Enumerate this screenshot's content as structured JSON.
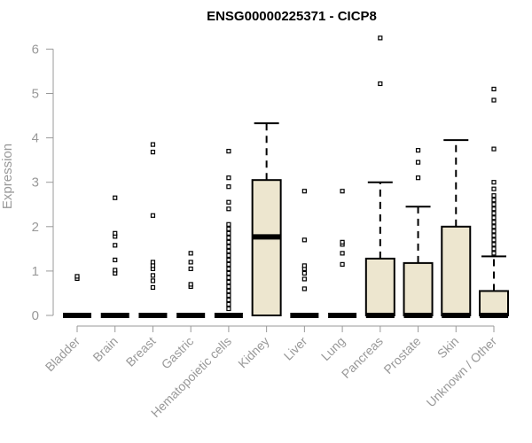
{
  "chart_data": {
    "type": "box",
    "title": "ENSG00000225371 - CICP8",
    "xlabel": "",
    "ylabel": "Expression",
    "ylim": [
      0,
      6.3
    ],
    "yticks": [
      0,
      1,
      2,
      3,
      4,
      5,
      6
    ],
    "box_color": "#ede6cf",
    "grid": false,
    "categories": [
      "Bladder",
      "Brain",
      "Breast",
      "Gastric",
      "Hematopoietic cells",
      "Kidney",
      "Liver",
      "Lung",
      "Pancreas",
      "Prostate",
      "Skin",
      "Unknown / Other"
    ],
    "boxes": [
      {
        "q1": 0,
        "median": 0,
        "q3": 0,
        "whisker_low": 0,
        "whisker_high": 0,
        "outliers": [
          0.83,
          0.88
        ]
      },
      {
        "q1": 0,
        "median": 0,
        "q3": 0,
        "whisker_low": 0,
        "whisker_high": 0,
        "outliers": [
          0.95,
          1.02,
          1.25,
          1.58,
          1.78,
          1.85,
          2.65
        ]
      },
      {
        "q1": 0,
        "median": 0,
        "q3": 0,
        "whisker_low": 0,
        "whisker_high": 0,
        "outliers": [
          0.63,
          0.78,
          0.9,
          1.05,
          1.12,
          1.2,
          2.25,
          3.68,
          3.85
        ]
      },
      {
        "q1": 0,
        "median": 0,
        "q3": 0,
        "whisker_low": 0,
        "whisker_high": 0,
        "outliers": [
          0.65,
          0.7,
          1.05,
          1.2,
          1.4
        ]
      },
      {
        "q1": 0,
        "median": 0,
        "q3": 0,
        "whisker_low": 0,
        "whisker_high": 0,
        "outliers": [
          0.15,
          0.25,
          0.35,
          0.45,
          0.55,
          0.65,
          0.75,
          0.85,
          0.95,
          1.05,
          1.15,
          1.25,
          1.35,
          1.45,
          1.55,
          1.65,
          1.75,
          1.85,
          1.95,
          2.05,
          2.4,
          2.55,
          2.9,
          3.1,
          3.7
        ]
      },
      {
        "q1": 0,
        "median": 1.77,
        "q3": 3.05,
        "whisker_low": 0,
        "whisker_high": 4.33,
        "outliers": []
      },
      {
        "q1": 0,
        "median": 0,
        "q3": 0,
        "whisker_low": 0,
        "whisker_high": 0,
        "outliers": [
          0.6,
          0.82,
          0.95,
          1.05,
          1.12,
          1.7,
          2.8
        ]
      },
      {
        "q1": 0,
        "median": 0,
        "q3": 0,
        "whisker_low": 0,
        "whisker_high": 0,
        "outliers": [
          1.15,
          1.4,
          1.6,
          1.65,
          2.8
        ]
      },
      {
        "q1": 0,
        "median": 0,
        "q3": 1.28,
        "whisker_low": 0,
        "whisker_high": 3.0,
        "outliers": [
          5.22,
          6.25
        ]
      },
      {
        "q1": 0,
        "median": 0,
        "q3": 1.18,
        "whisker_low": 0,
        "whisker_high": 2.45,
        "outliers": [
          3.1,
          3.45,
          3.72
        ]
      },
      {
        "q1": 0,
        "median": 0,
        "q3": 2.0,
        "whisker_low": 0,
        "whisker_high": 3.95,
        "outliers": []
      },
      {
        "q1": 0,
        "median": 0,
        "q3": 0.55,
        "whisker_low": 0,
        "whisker_high": 1.33,
        "outliers": [
          1.4,
          1.5,
          1.6,
          1.7,
          1.8,
          1.9,
          2.0,
          2.1,
          2.2,
          2.3,
          2.4,
          2.5,
          2.6,
          2.7,
          2.85,
          3.0,
          3.75,
          4.85,
          5.1
        ]
      }
    ]
  }
}
